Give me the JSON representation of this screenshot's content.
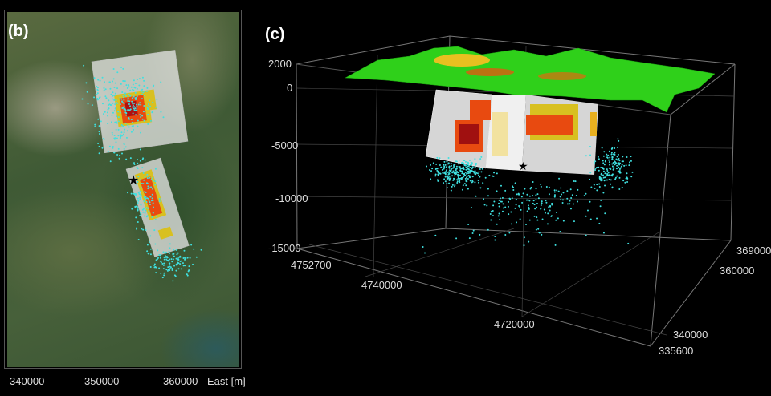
{
  "panel_b": {
    "label": "(b)",
    "x_ticks": [
      "340000",
      "350000",
      "360000"
    ],
    "x_axis_label": "East [m]"
  },
  "panel_c": {
    "label": "(c)",
    "depth_ticks": [
      "2000",
      "0",
      "-5000",
      "-10000",
      "-15000"
    ],
    "north_ticks": [
      "4752700",
      "4740000",
      "4720000"
    ],
    "east_ticks": [
      "335600",
      "340000",
      "360000",
      "369000"
    ]
  },
  "colors": {
    "seismicity": "#3fe0e0",
    "slip_high": "#b01010",
    "slip_mid": "#e84a10",
    "slip_low": "#d8c020",
    "terrain": "#2fd01a",
    "fault_plane": "#d6d6d6"
  },
  "icons": {
    "epicenter": "star-icon"
  }
}
